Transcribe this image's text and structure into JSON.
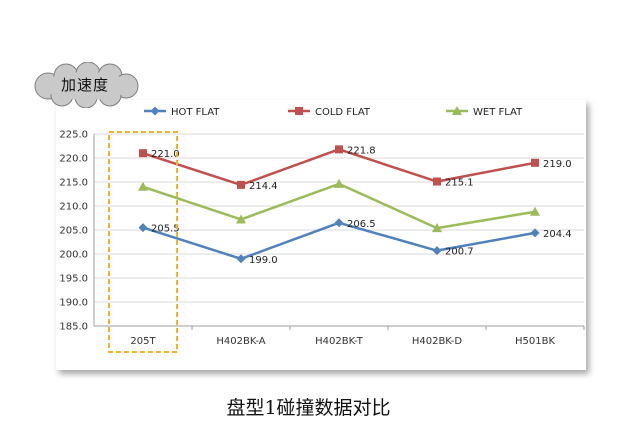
{
  "callout": {
    "text": "加速度"
  },
  "caption": "盘型1碰撞数据对比",
  "chart_data": {
    "type": "line",
    "categories": [
      "205T",
      "H402BK-A",
      "H402BK-T",
      "H402BK-D",
      "H501BK"
    ],
    "series": [
      {
        "name": "HOT FLAT",
        "color": "#4f81bd",
        "marker": "diamond",
        "values": [
          205.5,
          199.0,
          206.5,
          200.7,
          204.4
        ],
        "data_labels": [
          "205.5",
          "199.0",
          "206.5",
          "200.7",
          "204.4"
        ]
      },
      {
        "name": "COLD FLAT",
        "color": "#c0504d",
        "marker": "square",
        "values": [
          221.0,
          214.4,
          221.8,
          215.1,
          219.0
        ],
        "data_labels": [
          "221.0",
          "214.4",
          "221.8",
          "215.1",
          "219.0"
        ]
      },
      {
        "name": "WET FLAT",
        "color": "#9bbb59",
        "marker": "triangle",
        "values": [
          214.0,
          207.2,
          214.6,
          205.4,
          208.8
        ],
        "data_labels": []
      }
    ],
    "ylim": [
      185.0,
      225.0
    ],
    "yticks": [
      "185.0",
      "190.0",
      "195.0",
      "200.0",
      "205.0",
      "210.0",
      "215.0",
      "220.0",
      "225.0"
    ],
    "grid": true,
    "legend_position": "top",
    "highlight_category": "205T",
    "highlight_color": "#f5b324"
  }
}
